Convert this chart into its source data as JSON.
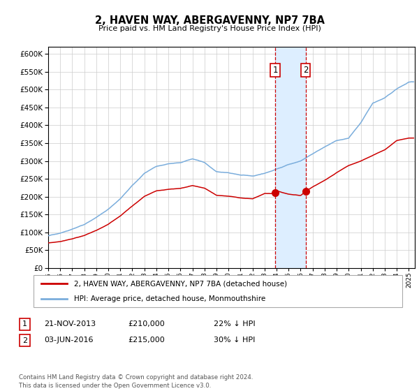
{
  "title": "2, HAVEN WAY, ABERGAVENNY, NP7 7BA",
  "subtitle": "Price paid vs. HM Land Registry's House Price Index (HPI)",
  "ylim": [
    0,
    620000
  ],
  "yticks": [
    0,
    50000,
    100000,
    150000,
    200000,
    250000,
    300000,
    350000,
    400000,
    450000,
    500000,
    550000,
    600000
  ],
  "xlim_start": 1995.0,
  "xlim_end": 2025.5,
  "purchase1_date": 2013.89,
  "purchase2_date": 2016.42,
  "purchase1_price": 210000,
  "purchase2_price": 215000,
  "legend_label_red": "2, HAVEN WAY, ABERGAVENNY, NP7 7BA (detached house)",
  "legend_label_blue": "HPI: Average price, detached house, Monmouthshire",
  "table_rows": [
    {
      "num": "1",
      "date": "21-NOV-2013",
      "price": "£210,000",
      "pct": "22% ↓ HPI"
    },
    {
      "num": "2",
      "date": "03-JUN-2016",
      "price": "£215,000",
      "pct": "30% ↓ HPI"
    }
  ],
  "footnote": "Contains HM Land Registry data © Crown copyright and database right 2024.\nThis data is licensed under the Open Government Licence v3.0.",
  "red_color": "#cc0000",
  "blue_color": "#7aaddc",
  "shade_color": "#ddeeff",
  "vline_color": "#cc0000",
  "background_color": "#ffffff",
  "grid_color": "#cccccc",
  "hpi_years": [
    1995,
    1996,
    1997,
    1998,
    1999,
    2000,
    2001,
    2002,
    2003,
    2004,
    2005,
    2006,
    2007,
    2008,
    2009,
    2010,
    2011,
    2012,
    2013,
    2014,
    2015,
    2016,
    2017,
    2018,
    2019,
    2020,
    2021,
    2022,
    2023,
    2024,
    2025
  ],
  "hpi_values": [
    90000,
    97000,
    108000,
    120000,
    140000,
    163000,
    192000,
    230000,
    265000,
    285000,
    292000,
    295000,
    305000,
    295000,
    268000,
    265000,
    258000,
    255000,
    262000,
    275000,
    288000,
    298000,
    318000,
    338000,
    355000,
    362000,
    405000,
    460000,
    475000,
    500000,
    520000
  ],
  "red_years": [
    1995,
    1996,
    1997,
    1998,
    1999,
    2000,
    2001,
    2002,
    2003,
    2004,
    2005,
    2006,
    2007,
    2008,
    2009,
    2010,
    2011,
    2012,
    2013,
    2013.89,
    2014,
    2015,
    2016,
    2016.42,
    2017,
    2018,
    2019,
    2020,
    2021,
    2022,
    2023,
    2024,
    2025
  ],
  "red_values": [
    70000,
    74000,
    82000,
    92000,
    107000,
    124000,
    147000,
    175000,
    202000,
    218000,
    223000,
    225000,
    233000,
    225000,
    205000,
    202000,
    197000,
    195000,
    210000,
    210000,
    218000,
    208000,
    204000,
    215000,
    228000,
    246000,
    268000,
    288000,
    300000,
    315000,
    330000,
    355000,
    362000
  ]
}
